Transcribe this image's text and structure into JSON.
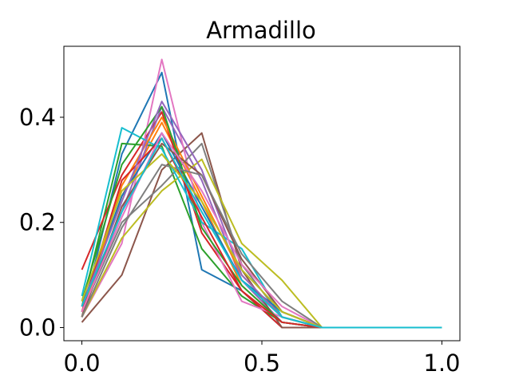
{
  "chart_data": {
    "type": "line",
    "title": "Armadillo",
    "xlabel": "",
    "ylabel": "",
    "xlim": [
      -0.05,
      1.05
    ],
    "ylim": [
      -0.025,
      0.535
    ],
    "x_ticks": [
      0.0,
      0.5,
      1.0
    ],
    "x_tick_labels": [
      "0.0",
      "0.5",
      "1.0"
    ],
    "y_ticks": [
      0.0,
      0.2,
      0.4
    ],
    "y_tick_labels": [
      "0.0",
      "0.2",
      "0.4"
    ],
    "grid": false,
    "legend": "none",
    "x": [
      0.0,
      0.111,
      0.222,
      0.333,
      0.444,
      0.556,
      0.667,
      0.778,
      0.889,
      1.0
    ],
    "series": [
      {
        "color": "#1f77b4",
        "values": [
          0.02,
          0.33,
          0.485,
          0.11,
          0.07,
          0.0,
          0.0,
          0.0,
          0.0,
          0.0
        ]
      },
      {
        "color": "#ff7f0e",
        "values": [
          0.03,
          0.25,
          0.39,
          0.24,
          0.08,
          0.01,
          0.0,
          0.0,
          0.0,
          0.0
        ]
      },
      {
        "color": "#2ca02c",
        "values": [
          0.04,
          0.35,
          0.345,
          0.15,
          0.06,
          0.01,
          0.0,
          0.0,
          0.0,
          0.0
        ]
      },
      {
        "color": "#d62728",
        "values": [
          0.11,
          0.29,
          0.41,
          0.18,
          0.07,
          0.0,
          0.0,
          0.0,
          0.0,
          0.0
        ]
      },
      {
        "color": "#9467bd",
        "values": [
          0.03,
          0.22,
          0.42,
          0.28,
          0.09,
          0.01,
          0.0,
          0.0,
          0.0,
          0.0
        ]
      },
      {
        "color": "#8c564b",
        "values": [
          0.01,
          0.1,
          0.3,
          0.37,
          0.11,
          0.0,
          0.0,
          0.0,
          0.0,
          0.0
        ]
      },
      {
        "color": "#e377c2",
        "values": [
          0.02,
          0.16,
          0.51,
          0.2,
          0.05,
          0.02,
          0.0,
          0.0,
          0.0,
          0.0
        ]
      },
      {
        "color": "#7f7f7f",
        "values": [
          0.03,
          0.2,
          0.27,
          0.35,
          0.12,
          0.02,
          0.0,
          0.0,
          0.0,
          0.0
        ]
      },
      {
        "color": "#bcbd22",
        "values": [
          0.02,
          0.17,
          0.26,
          0.32,
          0.16,
          0.09,
          0.0,
          0.0,
          0.0,
          0.0
        ]
      },
      {
        "color": "#17becf",
        "values": [
          0.06,
          0.38,
          0.34,
          0.2,
          0.15,
          0.02,
          0.0,
          0.0,
          0.0,
          0.0
        ]
      },
      {
        "color": "#1f77b4",
        "values": [
          0.04,
          0.25,
          0.37,
          0.23,
          0.09,
          0.03,
          0.0,
          0.0,
          0.0,
          0.0
        ]
      },
      {
        "color": "#ff7f0e",
        "values": [
          0.02,
          0.27,
          0.4,
          0.25,
          0.1,
          0.02,
          0.0,
          0.0,
          0.0,
          0.0
        ]
      },
      {
        "color": "#2ca02c",
        "values": [
          0.05,
          0.31,
          0.42,
          0.19,
          0.08,
          0.01,
          0.0,
          0.0,
          0.0,
          0.0
        ]
      },
      {
        "color": "#d62728",
        "values": [
          0.03,
          0.28,
          0.36,
          0.21,
          0.07,
          0.01,
          0.0,
          0.0,
          0.0,
          0.0
        ]
      },
      {
        "color": "#9467bd",
        "values": [
          0.04,
          0.24,
          0.43,
          0.3,
          0.1,
          0.02,
          0.0,
          0.0,
          0.0,
          0.0
        ]
      },
      {
        "color": "#8c564b",
        "values": [
          0.02,
          0.23,
          0.35,
          0.29,
          0.13,
          0.03,
          0.0,
          0.0,
          0.0,
          0.0
        ]
      },
      {
        "color": "#e377c2",
        "values": [
          0.03,
          0.21,
          0.37,
          0.26,
          0.12,
          0.04,
          0.0,
          0.0,
          0.0,
          0.0
        ]
      },
      {
        "color": "#7f7f7f",
        "values": [
          0.02,
          0.19,
          0.31,
          0.29,
          0.14,
          0.05,
          0.0,
          0.0,
          0.0,
          0.0
        ]
      },
      {
        "color": "#bcbd22",
        "values": [
          0.05,
          0.26,
          0.33,
          0.24,
          0.11,
          0.03,
          0.0,
          0.0,
          0.0,
          0.0
        ]
      },
      {
        "color": "#17becf",
        "values": [
          0.04,
          0.22,
          0.36,
          0.22,
          0.09,
          0.02,
          0.0,
          0.0,
          0.0,
          0.0
        ]
      }
    ]
  }
}
